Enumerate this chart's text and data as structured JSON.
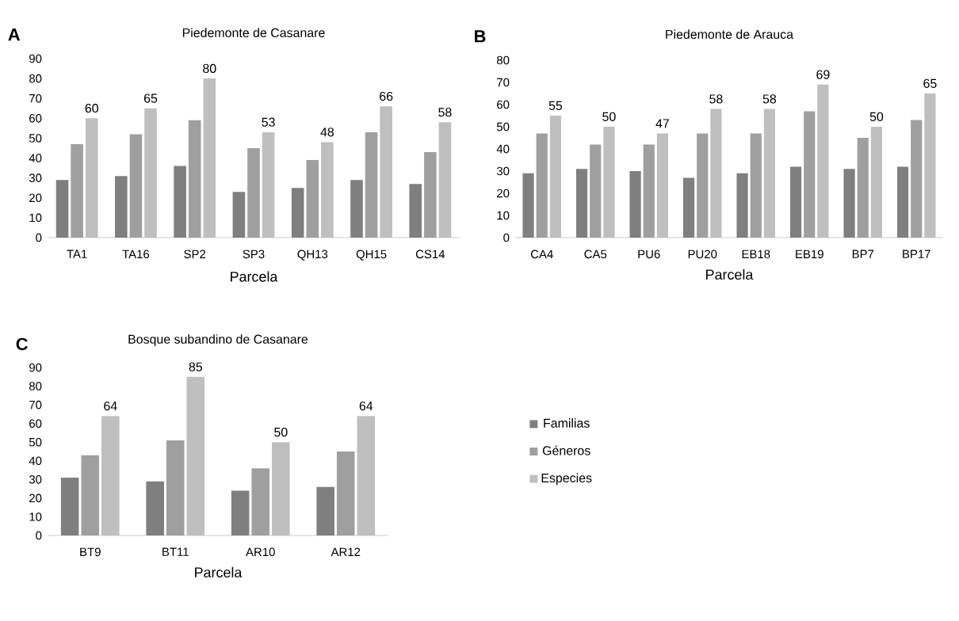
{
  "chart_data": [
    {
      "type": "bar",
      "title": "Piedemonte de Casanare",
      "xlabel": "Parcela",
      "annotations": [
        "A"
      ],
      "categories": [
        "TA1",
        "TA16",
        "SP2",
        "SP3",
        "QH13",
        "QH15",
        "CS14"
      ],
      "ylim": [
        0,
        90
      ],
      "yticks": [
        0,
        10,
        20,
        30,
        40,
        50,
        60,
        70,
        80,
        90
      ],
      "grid": false,
      "legend": false,
      "series": [
        {
          "color": "#7f7f7f",
          "values": [
            29,
            31,
            36,
            23,
            25,
            29,
            27
          ]
        },
        {
          "color": "#9f9f9f",
          "values": [
            47,
            52,
            59,
            45,
            39,
            53,
            43
          ]
        },
        {
          "color": "#bfbfbf",
          "values": [
            60,
            65,
            80,
            53,
            48,
            66,
            58
          ],
          "value_labels": [
            "60",
            "65",
            "80",
            "53",
            "48",
            "66",
            "58"
          ]
        }
      ]
    },
    {
      "type": "bar",
      "title": "Piedemonte de Arauca",
      "xlabel": "Parcela",
      "annotations": [
        "B"
      ],
      "categories": [
        "CA4",
        "CA5",
        "PU6",
        "PU20",
        "EB18",
        "EB19",
        "BP7",
        "BP17"
      ],
      "ylim": [
        0,
        80
      ],
      "yticks": [
        0,
        10,
        20,
        30,
        40,
        50,
        60,
        70,
        80
      ],
      "grid": false,
      "legend": false,
      "series": [
        {
          "color": "#7f7f7f",
          "values": [
            29,
            31,
            30,
            27,
            29,
            32,
            31,
            32
          ]
        },
        {
          "color": "#9f9f9f",
          "values": [
            47,
            42,
            42,
            47,
            47,
            57,
            45,
            53
          ]
        },
        {
          "color": "#bfbfbf",
          "values": [
            55,
            50,
            47,
            58,
            58,
            69,
            50,
            65
          ],
          "value_labels": [
            "55",
            "50",
            "47",
            "58",
            "58",
            "69",
            "50",
            "65"
          ]
        }
      ]
    },
    {
      "type": "bar",
      "title": "Bosque subandino de Casanare",
      "xlabel": "Parcela",
      "annotations": [
        "C"
      ],
      "categories": [
        "BT9",
        "BT11",
        "AR10",
        "AR12"
      ],
      "ylim": [
        0,
        90
      ],
      "yticks": [
        0,
        10,
        20,
        30,
        40,
        50,
        60,
        70,
        80,
        90
      ],
      "grid": false,
      "legend": "right",
      "series": [
        {
          "name": "Familias",
          "color": "#7f7f7f",
          "values": [
            31,
            29,
            24,
            26
          ]
        },
        {
          "name": "Géneros",
          "color": "#9f9f9f",
          "values": [
            43,
            51,
            36,
            45
          ]
        },
        {
          "name": "Especies",
          "color": "#bfbfbf",
          "values": [
            64,
            85,
            50,
            64
          ],
          "value_labels": [
            "64",
            "85",
            "50",
            "64"
          ]
        }
      ]
    }
  ]
}
